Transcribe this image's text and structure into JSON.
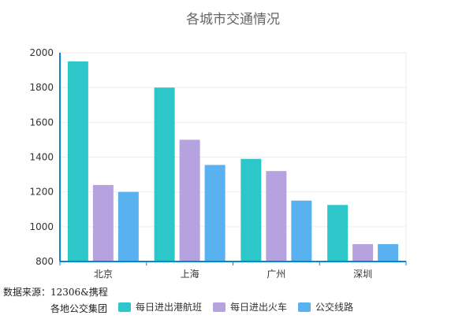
{
  "chart_data": {
    "type": "bar",
    "title": "各城市交通情况",
    "categories": [
      "北京",
      "上海",
      "广州",
      "深圳"
    ],
    "series": [
      {
        "name": "每日进出港航班",
        "color": "#2ec7c9",
        "values": [
          1950,
          1800,
          1390,
          1125
        ]
      },
      {
        "name": "每日进出火车",
        "color": "#b6a2de",
        "values": [
          1240,
          1500,
          1320,
          900
        ]
      },
      {
        "name": "公交线路",
        "color": "#5ab1ef",
        "values": [
          1200,
          1355,
          1150,
          900
        ]
      }
    ],
    "ylim": [
      800,
      2000
    ],
    "yticks": [
      800,
      1000,
      1200,
      1400,
      1600,
      1800,
      2000
    ],
    "grid": true,
    "legend_position": "bottom"
  },
  "source": {
    "line1": "数据来源：12306&携程",
    "line2": "各地公交集团"
  }
}
